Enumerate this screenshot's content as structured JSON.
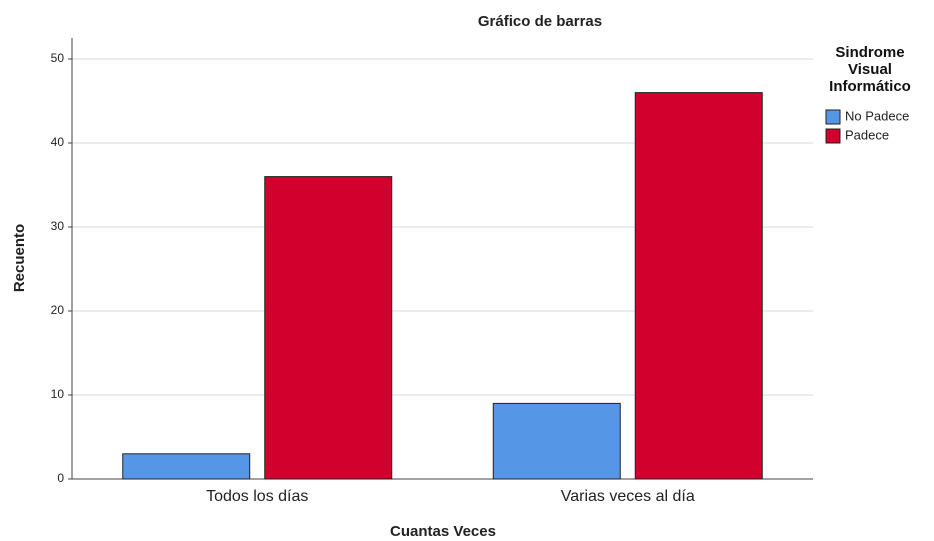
{
  "chart_data": {
    "type": "bar",
    "title": "Gráfico de barras",
    "x_label": "Cuantas Veces",
    "y_label": "Recuento",
    "categories": [
      "Todos los días",
      "Varias veces al día"
    ],
    "legend_title": "Sindrome Visual Informático",
    "series": [
      {
        "name": "No Padece",
        "color": "#5596e6",
        "values": [
          3,
          9
        ]
      },
      {
        "name": "Padece",
        "color": "#d2002c",
        "values": [
          36,
          46
        ]
      }
    ],
    "ylim": [
      0,
      52.5
    ],
    "yticks": [
      0,
      10,
      20,
      30,
      40,
      50
    ],
    "grid": true,
    "legend": "right"
  }
}
